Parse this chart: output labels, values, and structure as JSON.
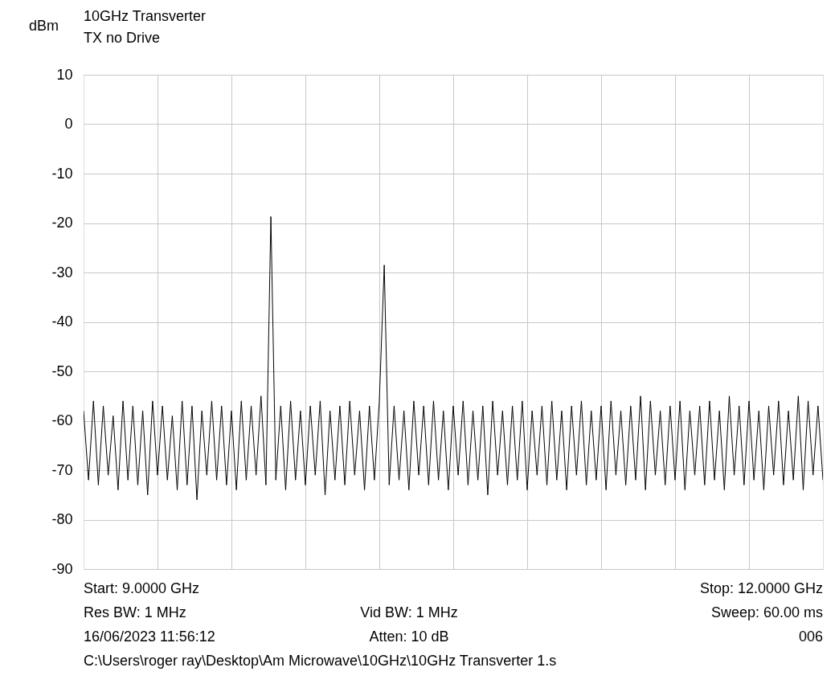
{
  "chart_data": {
    "type": "line",
    "title": "10GHz Transverter",
    "subtitle": "TX no Drive",
    "ylabel": "dBm",
    "categories": [
      null,
      null,
      null,
      null,
      null,
      null,
      null,
      null,
      null,
      null,
      null,
      null,
      null,
      null,
      null,
      null,
      null,
      null,
      null,
      null,
      null,
      null,
      null,
      null,
      null,
      null,
      null,
      null,
      null,
      null,
      null,
      null,
      null,
      null,
      null,
      null,
      null,
      null,
      null,
      null,
      null,
      null,
      null,
      null,
      null,
      null,
      null,
      null,
      null,
      null,
      null,
      null,
      null,
      null,
      null,
      null,
      null,
      null,
      null,
      null,
      null,
      null,
      null,
      null,
      null,
      null,
      null,
      null,
      null,
      null,
      null,
      null,
      null,
      null,
      null,
      null,
      null,
      null,
      null,
      null,
      null,
      null,
      null,
      null,
      null,
      null,
      null,
      null,
      null,
      null,
      null,
      null,
      null,
      null,
      null,
      null,
      null,
      null,
      null,
      null,
      null,
      null,
      null,
      null,
      null,
      null,
      null,
      null,
      null,
      null,
      null,
      null,
      null,
      null,
      null,
      null,
      null,
      null,
      null,
      null,
      null,
      null,
      null,
      null,
      null,
      null,
      null,
      null,
      null,
      null,
      null,
      null,
      null,
      null,
      null,
      null,
      null,
      null,
      null,
      null,
      null,
      null,
      null,
      null,
      null,
      null,
      null,
      null,
      null,
      null,
      null
    ],
    "series": [
      {
        "color": "#000000",
        "values": [
          -58,
          -72,
          -56,
          -73,
          -57,
          -71,
          -59,
          -74,
          -56,
          -72,
          -57,
          -73,
          -58,
          -75,
          -56,
          -71,
          -57,
          -72,
          -59,
          -74,
          -56,
          -73,
          -57,
          -76,
          -58,
          -71,
          -56,
          -72,
          -57,
          -73,
          -58,
          -74,
          -56,
          -72,
          -57,
          -71,
          -55,
          -73,
          -18.7,
          -72,
          -57,
          -74,
          -56,
          -72,
          -58,
          -73,
          -57,
          -71,
          -56,
          -75,
          -58,
          -72,
          -57,
          -73,
          -56,
          -71,
          -58,
          -74,
          -57,
          -72,
          -56,
          -28.5,
          -73,
          -57,
          -72,
          -58,
          -74,
          -56,
          -71,
          -57,
          -73,
          -56,
          -72,
          -58,
          -74,
          -57,
          -71,
          -56,
          -73,
          -58,
          -72,
          -57,
          -75,
          -56,
          -71,
          -58,
          -73,
          -57,
          -72,
          -56,
          -74,
          -58,
          -71,
          -57,
          -73,
          -56,
          -72,
          -58,
          -74,
          -57,
          -71,
          -56,
          -73,
          -58,
          -72,
          -57,
          -74,
          -56,
          -71,
          -58,
          -73,
          -57,
          -72,
          -55,
          -74,
          -56,
          -71,
          -58,
          -73,
          -57,
          -72,
          -56,
          -74,
          -58,
          -71,
          -57,
          -73,
          -56,
          -72,
          -58,
          -74,
          -55,
          -71,
          -57,
          -73,
          -56,
          -72,
          -58,
          -74,
          -57,
          -71,
          -56,
          -73,
          -58,
          -72,
          -55,
          -74,
          -56,
          -71,
          -57,
          -72
        ]
      }
    ],
    "ylim": [
      -90,
      10
    ],
    "yticks": [
      -90,
      -80,
      -70,
      -60,
      -50,
      -40,
      -30,
      -20,
      -10,
      0,
      10
    ],
    "grid": true,
    "tick_labels": "y",
    "line_style": "solid",
    "annotations": [
      "Start: 9.0000 GHz",
      "Stop: 12.0000 GHz",
      "Res BW: 1 MHz",
      "Vid BW: 1 MHz",
      "Sweep: 60.00 ms",
      "16/06/2023 11:56:12",
      "Atten: 10 dB",
      "006",
      "C:\\Users\\roger ray\\Desktop\\Am Microwave\\10GHz\\10GHz Transverter 1.s"
    ]
  }
}
